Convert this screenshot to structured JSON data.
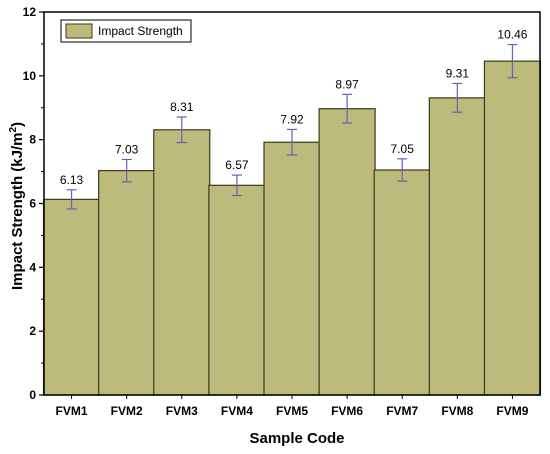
{
  "chart_data": {
    "type": "bar",
    "categories": [
      "FVM1",
      "FVM2",
      "FVM3",
      "FVM4",
      "FVM5",
      "FVM6",
      "FVM7",
      "FVM8",
      "FVM9"
    ],
    "series": [
      {
        "name": "Impact Strength",
        "values": [
          6.13,
          7.03,
          8.31,
          6.57,
          7.92,
          8.97,
          7.05,
          9.31,
          10.46
        ],
        "errors": [
          0.3,
          0.35,
          0.4,
          0.32,
          0.4,
          0.45,
          0.35,
          0.45,
          0.52
        ],
        "value_labels": [
          "6.13",
          "7.03",
          "8.31",
          "6.57",
          "7.92",
          "8.97",
          "7.05",
          "9.31",
          "10.46"
        ]
      }
    ],
    "xlabel": "Sample Code",
    "ylabel_prefix": "Impact Strength (kJ/m",
    "ylabel_sup": "2",
    "ylabel_suffix": ")",
    "ylim": [
      0,
      12
    ],
    "yticks": [
      0,
      2,
      4,
      6,
      8,
      10,
      12
    ],
    "legend_position": "top-left",
    "grid": false,
    "colors": {
      "bar_fill": "#bdbb7c",
      "bar_stroke": "#3a3a1a",
      "error_bar": "#6b5fb0",
      "axis": "#000000"
    }
  }
}
